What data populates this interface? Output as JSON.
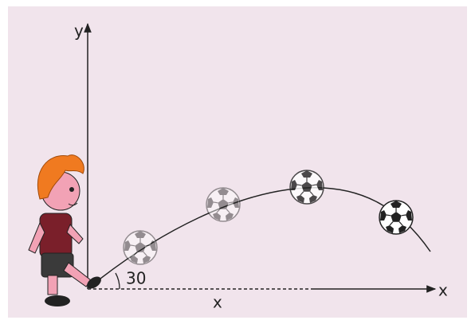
{
  "axes": {
    "y_label": "y",
    "x_label": "x"
  },
  "angle_label": "30",
  "distance_label": "x"
}
